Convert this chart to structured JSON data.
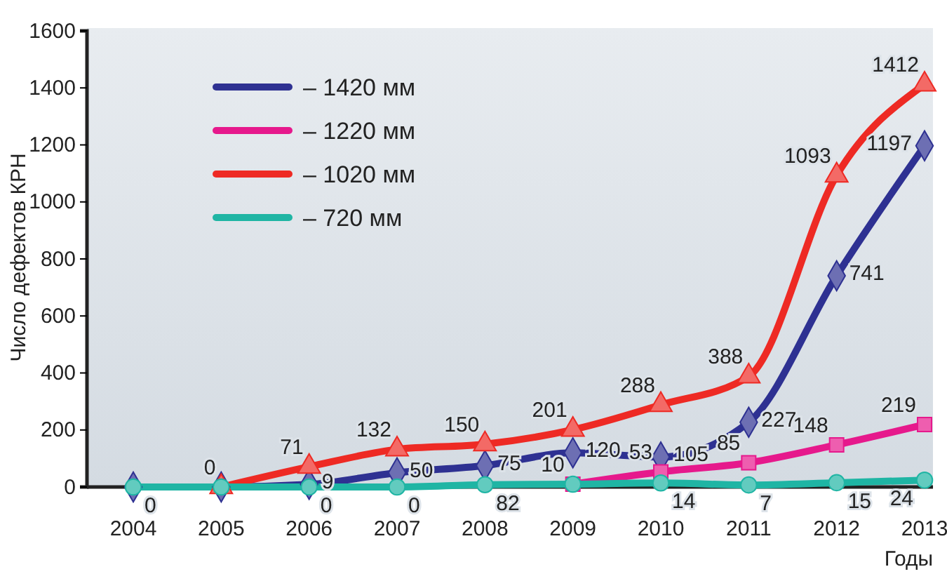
{
  "chart_data": {
    "type": "line",
    "xlabel": "Годы",
    "ylabel": "Число дефектов КРН",
    "categories": [
      "2004",
      "2005",
      "2006",
      "2007",
      "2008",
      "2009",
      "2010",
      "2011",
      "2012",
      "2013"
    ],
    "ylim": [
      0,
      1600
    ],
    "yticks": [
      0,
      200,
      400,
      600,
      800,
      1000,
      1200,
      1400,
      1600
    ],
    "grid": false,
    "legend": "top left",
    "series": [
      {
        "name": "– 1420 мм",
        "color": "#2e3192",
        "marker": "diamond",
        "values": [
          0,
          0,
          9,
          50,
          75,
          120,
          105,
          227,
          741,
          1197
        ],
        "value_labels": [
          null,
          null,
          "9",
          "50",
          "75",
          "120",
          "105",
          "227",
          "741",
          "1197"
        ]
      },
      {
        "name": "– 1220 мм",
        "color": "#e6198c",
        "marker": "square",
        "values": [
          null,
          null,
          null,
          null,
          null,
          10,
          53,
          85,
          148,
          219
        ],
        "value_labels": [
          null,
          null,
          null,
          null,
          null,
          "10",
          "53",
          "85",
          "148",
          "219"
        ]
      },
      {
        "name": "– 1020 мм",
        "color": "#ee2a24",
        "marker": "triangle",
        "values": [
          null,
          0,
          71,
          132,
          150,
          201,
          288,
          388,
          1093,
          1412
        ],
        "value_labels": [
          null,
          "0",
          "71",
          "132",
          "150",
          "201",
          "288",
          "388",
          "1093",
          "1412"
        ]
      },
      {
        "name": "– 720 мм",
        "color": "#1fb5a4",
        "marker": "circle",
        "values": [
          0,
          0,
          0,
          0,
          8,
          10,
          14,
          7,
          15,
          24
        ],
        "value_labels": [
          "0",
          null,
          "0",
          "0",
          null,
          null,
          "14",
          "7",
          "15",
          "24"
        ]
      }
    ],
    "annotations": [
      {
        "text": "82",
        "x": "2008",
        "y": 8
      }
    ]
  }
}
